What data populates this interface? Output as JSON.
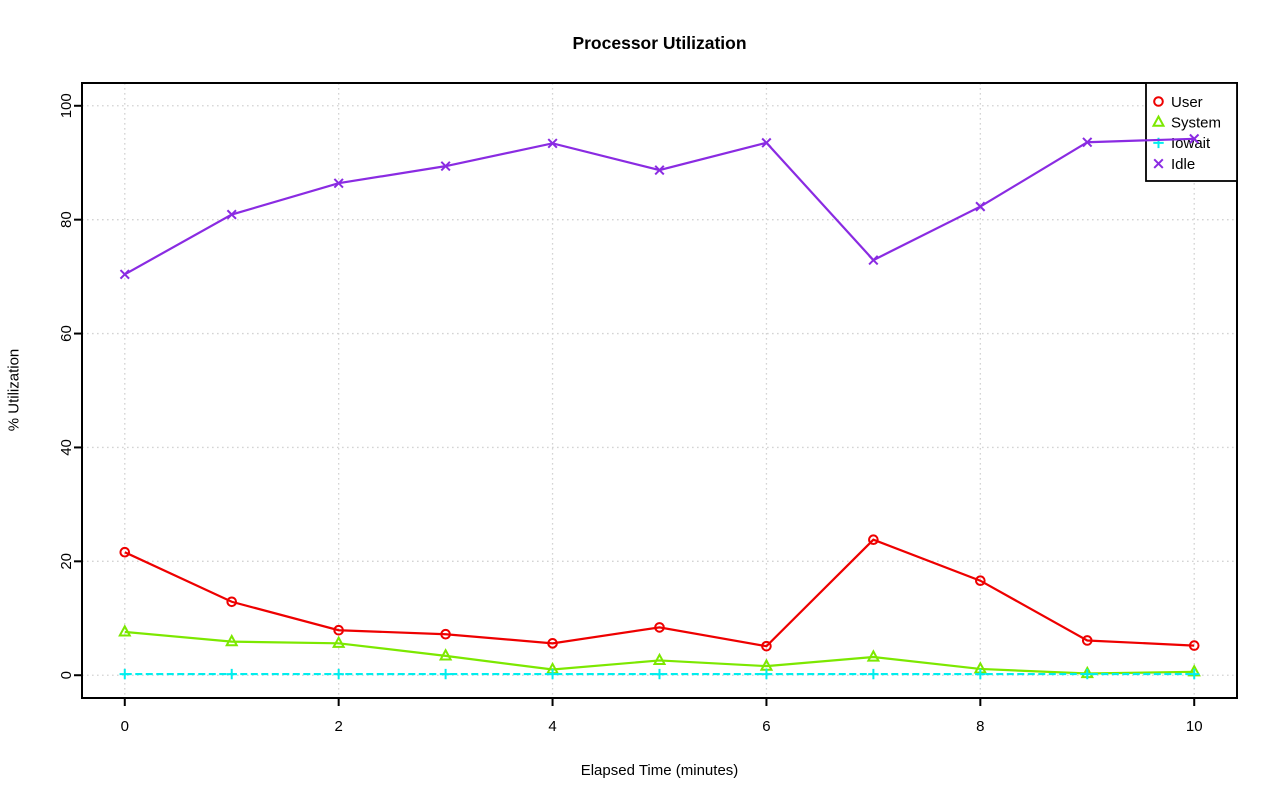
{
  "chart_data": {
    "type": "line",
    "title": "Processor Utilization",
    "xlabel": "Elapsed Time (minutes)",
    "ylabel": "% Utilization",
    "x": [
      0,
      1,
      2,
      3,
      4,
      5,
      6,
      7,
      8,
      9,
      10
    ],
    "x_ticks": [
      0,
      2,
      4,
      6,
      8,
      10
    ],
    "y_ticks": [
      0,
      20,
      40,
      60,
      80,
      100
    ],
    "xlim": [
      -0.4,
      10.4
    ],
    "ylim": [
      -4,
      104
    ],
    "grid": "dotted",
    "grid_color": "#D3D3D3",
    "axis_color": "#000000",
    "legend_position": "top-right",
    "series": [
      {
        "name": "User",
        "color": "#EE0000",
        "marker": "circle",
        "line_style": "solid",
        "values": [
          21.6,
          12.9,
          7.9,
          7.2,
          5.6,
          8.4,
          5.1,
          23.8,
          16.6,
          6.1,
          5.2
        ]
      },
      {
        "name": "System",
        "color": "#7CE800",
        "marker": "triangle",
        "line_style": "solid",
        "values": [
          7.6,
          5.9,
          5.6,
          3.4,
          1.0,
          2.6,
          1.6,
          3.2,
          1.1,
          0.3,
          0.6
        ]
      },
      {
        "name": "Iowait",
        "color": "#00EEEE",
        "marker": "plus",
        "line_style": "dashed",
        "values": [
          0.2,
          0.2,
          0.2,
          0.2,
          0.2,
          0.2,
          0.2,
          0.2,
          0.2,
          0.2,
          0.2
        ]
      },
      {
        "name": "Idle",
        "color": "#8A2BE2",
        "marker": "x",
        "line_style": "solid",
        "values": [
          70.4,
          80.9,
          86.4,
          89.4,
          93.4,
          88.7,
          93.5,
          72.9,
          82.3,
          93.6,
          94.2
        ]
      }
    ]
  }
}
